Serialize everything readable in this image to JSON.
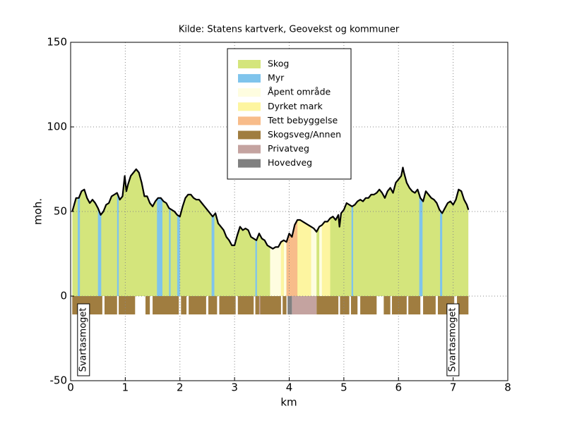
{
  "chart_data": {
    "type": "elevation-profile",
    "title": "Kilde: Statens kartverk, Geovekst og kommuner",
    "x_label": "km",
    "y_label": "moh.",
    "xlim": [
      0,
      8
    ],
    "xticks": [
      0,
      1,
      2,
      3,
      4,
      5,
      6,
      7,
      8
    ],
    "ylim": [
      -50,
      150
    ],
    "yticks": [
      -50,
      0,
      50,
      100,
      150
    ],
    "grid": true,
    "line_color": "#000000",
    "elevation": {
      "x": [
        0.03,
        0.1,
        0.15,
        0.2,
        0.25,
        0.3,
        0.35,
        0.4,
        0.45,
        0.5,
        0.55,
        0.6,
        0.65,
        0.7,
        0.75,
        0.8,
        0.85,
        0.9,
        0.95,
        0.99,
        1.02,
        1.05,
        1.1,
        1.15,
        1.2,
        1.25,
        1.3,
        1.35,
        1.4,
        1.45,
        1.5,
        1.55,
        1.6,
        1.65,
        1.7,
        1.75,
        1.8,
        1.85,
        1.9,
        1.95,
        2.0,
        2.05,
        2.1,
        2.15,
        2.2,
        2.25,
        2.3,
        2.35,
        2.4,
        2.45,
        2.5,
        2.55,
        2.6,
        2.65,
        2.7,
        2.75,
        2.8,
        2.85,
        2.9,
        2.95,
        3.0,
        3.05,
        3.1,
        3.15,
        3.2,
        3.25,
        3.3,
        3.35,
        3.4,
        3.45,
        3.5,
        3.55,
        3.6,
        3.65,
        3.7,
        3.75,
        3.8,
        3.85,
        3.9,
        3.95,
        4.0,
        4.05,
        4.1,
        4.15,
        4.2,
        4.25,
        4.3,
        4.35,
        4.4,
        4.45,
        4.5,
        4.55,
        4.6,
        4.65,
        4.7,
        4.75,
        4.8,
        4.85,
        4.9,
        4.92,
        4.95,
        5.0,
        5.05,
        5.1,
        5.15,
        5.2,
        5.25,
        5.3,
        5.35,
        5.4,
        5.45,
        5.5,
        5.55,
        5.6,
        5.65,
        5.7,
        5.75,
        5.8,
        5.85,
        5.9,
        5.95,
        6.0,
        6.05,
        6.08,
        6.1,
        6.15,
        6.2,
        6.25,
        6.3,
        6.35,
        6.4,
        6.45,
        6.5,
        6.55,
        6.6,
        6.65,
        6.7,
        6.75,
        6.8,
        6.85,
        6.9,
        6.95,
        7.0,
        7.05,
        7.1,
        7.15,
        7.2,
        7.25,
        7.28
      ],
      "values": [
        50,
        58,
        58,
        62,
        63,
        58,
        55,
        57,
        55,
        52,
        48,
        50,
        54,
        55,
        59,
        60,
        61,
        57,
        59,
        71,
        62,
        66,
        71,
        73,
        75,
        73,
        67,
        59,
        59,
        55,
        53,
        56,
        58,
        58,
        56,
        55,
        52,
        51,
        50,
        48,
        47,
        53,
        58,
        60,
        60,
        58,
        57,
        57,
        55,
        53,
        51,
        49,
        47,
        49,
        43,
        41,
        39,
        35,
        33,
        30,
        30,
        36,
        41,
        39,
        40,
        39,
        35,
        34,
        33,
        37,
        34,
        33,
        30,
        29,
        28,
        29,
        29,
        32,
        33,
        32,
        37,
        35,
        42,
        45,
        45,
        44,
        43,
        42,
        41,
        40,
        38,
        41,
        42,
        44,
        44,
        46,
        47,
        45,
        48,
        41,
        49,
        51,
        55,
        54,
        53,
        54,
        56,
        57,
        56,
        58,
        58,
        60,
        60,
        61,
        63,
        61,
        58,
        62,
        64,
        61,
        67,
        69,
        71,
        76,
        73,
        67,
        64,
        62,
        61,
        63,
        58,
        56,
        62,
        60,
        58,
        57,
        55,
        51,
        49,
        52,
        55,
        56,
        54,
        57,
        63,
        62,
        57,
        54,
        51
      ]
    },
    "land_cover": [
      {
        "name": "Skog",
        "color": "#d4e57c",
        "segments": [
          [
            0.03,
            7.28
          ]
        ]
      },
      {
        "name": "Myr",
        "color": "#7fc4ec",
        "segments": [
          [
            0.13,
            0.17
          ],
          [
            0.5,
            0.56
          ],
          [
            0.85,
            0.88
          ],
          [
            1.58,
            1.68
          ],
          [
            1.8,
            1.83
          ],
          [
            1.95,
            2.0
          ],
          [
            2.58,
            2.63
          ],
          [
            3.38,
            3.41
          ],
          [
            5.14,
            5.17
          ],
          [
            6.38,
            6.44
          ],
          [
            6.76,
            6.8
          ]
        ]
      },
      {
        "name": "Åpent område",
        "color": "#fefde0",
        "segments": [
          [
            3.65,
            3.85
          ],
          [
            3.9,
            3.95
          ],
          [
            4.4,
            4.5
          ],
          [
            4.55,
            4.6
          ]
        ]
      },
      {
        "name": "Dyrket mark",
        "color": "#fdf5a0",
        "segments": [
          [
            3.85,
            3.9
          ],
          [
            4.15,
            4.4
          ],
          [
            4.6,
            4.75
          ]
        ]
      },
      {
        "name": "Tett bebyggelse",
        "color": "#f8bc8a",
        "segments": [
          [
            3.95,
            4.15
          ]
        ]
      }
    ],
    "roads": [
      {
        "name": "Skogsveg/Annen",
        "color": "#a07d40",
        "segments": [
          [
            0.03,
            0.58
          ],
          [
            0.62,
            0.85
          ],
          [
            0.88,
            1.18
          ],
          [
            1.37,
            1.45
          ],
          [
            1.5,
            1.98
          ],
          [
            2.02,
            2.12
          ],
          [
            2.16,
            2.48
          ],
          [
            2.52,
            2.68
          ],
          [
            2.72,
            3.02
          ],
          [
            3.06,
            3.35
          ],
          [
            3.38,
            3.45
          ],
          [
            3.47,
            3.85
          ],
          [
            3.88,
            3.95
          ],
          [
            4.5,
            4.9
          ],
          [
            4.93,
            5.1
          ],
          [
            5.13,
            5.25
          ],
          [
            5.3,
            5.6
          ],
          [
            5.73,
            5.85
          ],
          [
            5.88,
            6.15
          ],
          [
            6.18,
            6.4
          ],
          [
            6.45,
            6.68
          ],
          [
            6.72,
            7.02
          ],
          [
            7.07,
            7.28
          ]
        ]
      },
      {
        "name": "Privatveg",
        "color": "#c4a3a0",
        "segments": [
          [
            3.45,
            3.47
          ],
          [
            4.05,
            4.5
          ]
        ]
      },
      {
        "name": "Hovedveg",
        "color": "#808080",
        "segments": [
          [
            3.97,
            4.05
          ]
        ]
      }
    ],
    "annotations": [
      {
        "text": "Svartasmoget",
        "x": 0.23
      },
      {
        "text": "Svartasmoget",
        "x": 6.99
      }
    ]
  }
}
